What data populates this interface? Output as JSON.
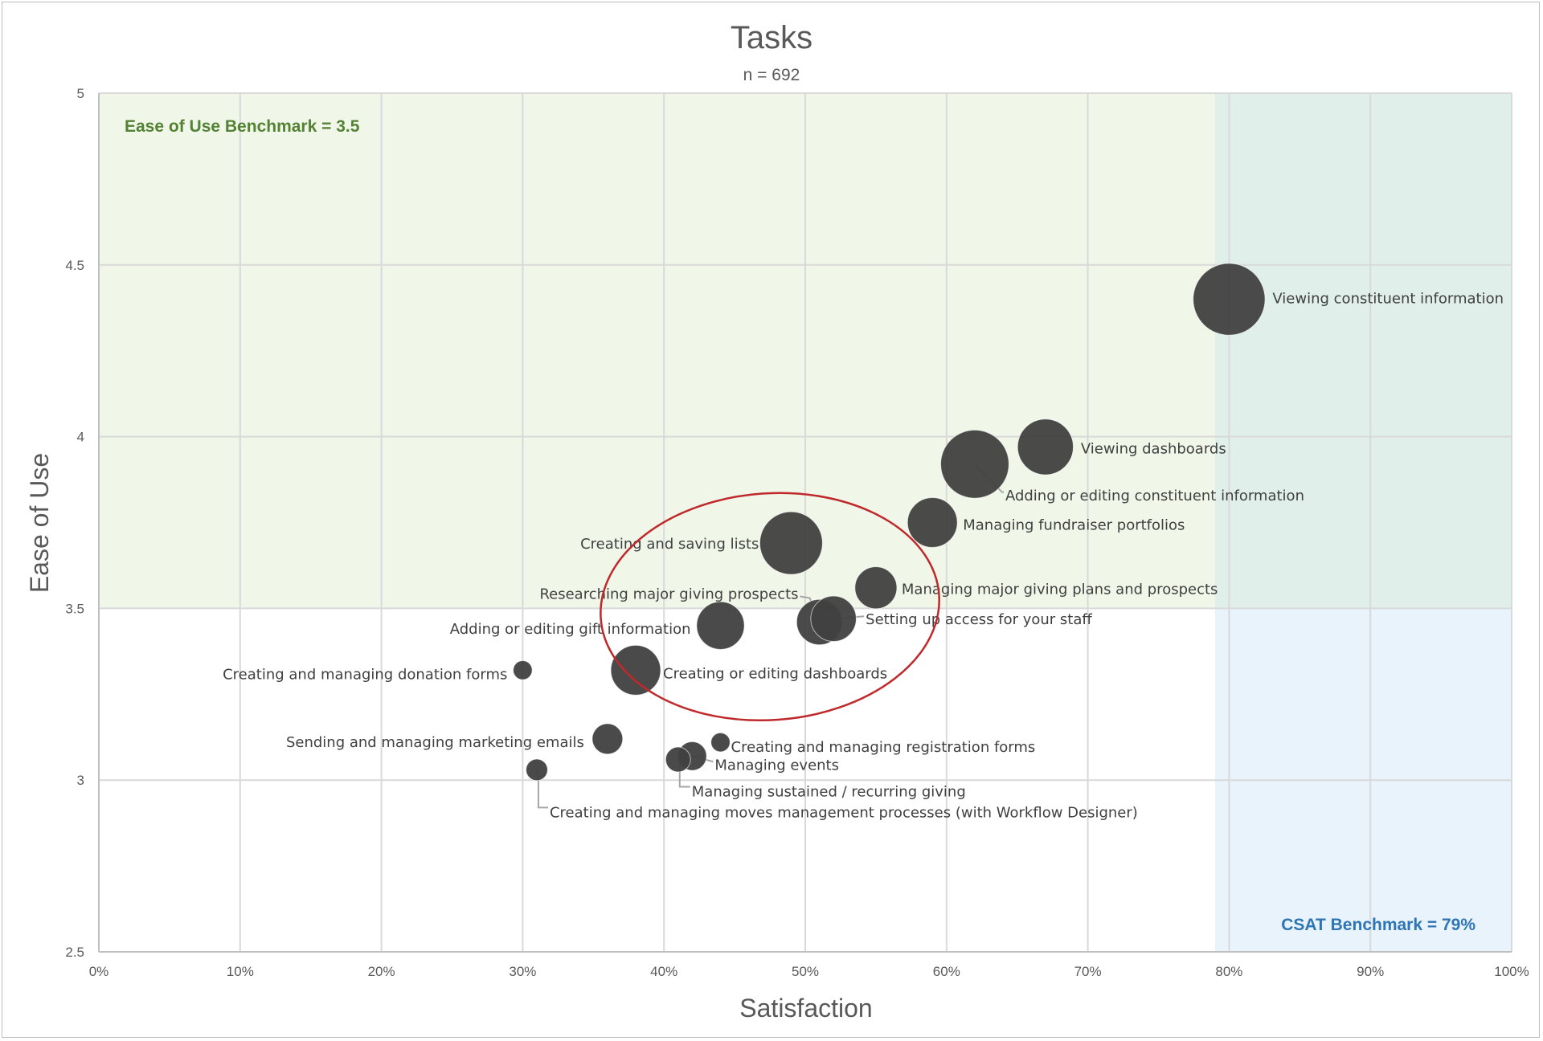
{
  "chart_data": {
    "type": "scatter",
    "variant": "bubble",
    "title": "Tasks",
    "subtitle": "n = 692",
    "xlabel": "Satisfaction",
    "ylabel": "Ease of Use",
    "xlim": [
      0,
      1
    ],
    "ylim": [
      2.5,
      5
    ],
    "x_ticks": [
      0,
      0.1,
      0.2,
      0.3,
      0.4,
      0.5,
      0.6,
      0.7,
      0.8,
      0.9,
      1.0
    ],
    "x_tick_labels": [
      "0%",
      "10%",
      "20%",
      "30%",
      "40%",
      "50%",
      "60%",
      "70%",
      "80%",
      "90%",
      "100%"
    ],
    "y_ticks": [
      2.5,
      3,
      3.5,
      4,
      4.5,
      5
    ],
    "y_tick_labels": [
      "2.5",
      "3",
      "3.5",
      "4",
      "4.5",
      "5"
    ],
    "grid": true,
    "bubble_color": "#404040",
    "benchmarks": {
      "ease_of_use": {
        "value": 3.5,
        "label": "Ease of Use Benchmark = 3.5",
        "color": "#548235",
        "fill": "#f0f7e9"
      },
      "csat": {
        "value": 0.79,
        "label": "CSAT Benchmark = 79%",
        "color": "#2e75b6",
        "fill": "#e8f3fb"
      },
      "overlap_fill": "#e0efea"
    },
    "highlight_ellipse": {
      "color": "#c0292b",
      "cx": 0.475,
      "cy": 3.505,
      "rx": 0.12,
      "ry": 0.33
    },
    "points": [
      {
        "label": "Viewing constituent information",
        "x": 0.8,
        "y": 4.4,
        "size": 5
      },
      {
        "label": "Viewing dashboards",
        "x": 0.67,
        "y": 3.97,
        "size": 3
      },
      {
        "label": "Adding or editing constituent information",
        "x": 0.62,
        "y": 3.92,
        "size": 4.5
      },
      {
        "label": "Managing fundraiser portfolios",
        "x": 0.59,
        "y": 3.75,
        "size": 2.4
      },
      {
        "label": "Creating and saving lists",
        "x": 0.49,
        "y": 3.69,
        "size": 3.8
      },
      {
        "label": "Managing major giving plans and prospects",
        "x": 0.55,
        "y": 3.56,
        "size": 1.7
      },
      {
        "label": "Researching major giving prospects",
        "x": 0.51,
        "y": 3.46,
        "size": 2
      },
      {
        "label": "Setting up access for your staff",
        "x": 0.52,
        "y": 3.47,
        "size": 2
      },
      {
        "label": "Adding or editing gift information",
        "x": 0.44,
        "y": 3.45,
        "size": 2.2
      },
      {
        "label": "Creating or editing dashboards",
        "x": 0.38,
        "y": 3.32,
        "size": 2.4
      },
      {
        "label": "Creating and managing donation forms",
        "x": 0.3,
        "y": 3.32,
        "size": 0.35
      },
      {
        "label": "Sending and managing marketing emails",
        "x": 0.36,
        "y": 3.12,
        "size": 0.9
      },
      {
        "label": "Creating and managing registration forms",
        "x": 0.44,
        "y": 3.11,
        "size": 0.35
      },
      {
        "label": "Managing events",
        "x": 0.42,
        "y": 3.07,
        "size": 0.8
      },
      {
        "label": "Managing sustained / recurring giving",
        "x": 0.41,
        "y": 3.06,
        "size": 0.6
      },
      {
        "label": "Creating and managing moves management  processes (with Workflow Designer)",
        "x": 0.31,
        "y": 3.03,
        "size": 0.45
      }
    ]
  }
}
